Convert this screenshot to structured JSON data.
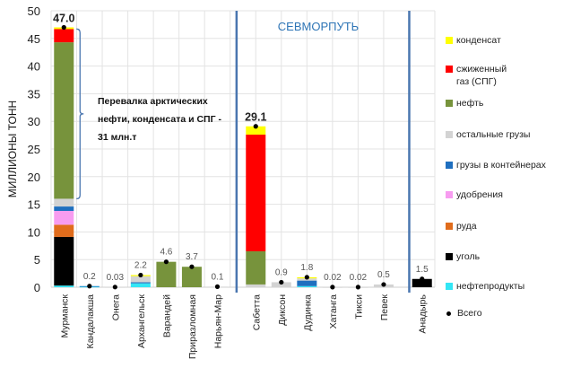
{
  "chart_data": {
    "type": "bar",
    "stacked": true,
    "ylabel": "МИЛЛИОНЫ ТОНН",
    "ylim": [
      0,
      50
    ],
    "yticks": [
      0,
      5,
      10,
      15,
      20,
      25,
      30,
      35,
      40,
      45,
      50
    ],
    "grid": true,
    "legend_position": "right",
    "categories": [
      "Мурманск",
      "Кандалакша",
      "Онега",
      "Архангельск",
      "Варандей",
      "Приразломная",
      "Нарьян-Мар",
      "Сабетта",
      "Диксон",
      "Дудинка",
      "Хатанга",
      "Тикси",
      "Певек",
      "Анадырь"
    ],
    "series": [
      {
        "name": "нефтепродукты",
        "color": "#33e6f5",
        "values": [
          0.3,
          0.1,
          0,
          0.7,
          0,
          0,
          0,
          0,
          0,
          0.2,
          0,
          0,
          0,
          0
        ]
      },
      {
        "name": "уголь",
        "color": "#000000",
        "values": [
          8.8,
          0,
          0,
          0,
          0,
          0,
          0,
          0,
          0,
          0,
          0,
          0,
          0,
          1.5
        ]
      },
      {
        "name": "руда",
        "color": "#e06c1c",
        "values": [
          2.2,
          0,
          0,
          0,
          0,
          0,
          0,
          0,
          0,
          0,
          0,
          0,
          0,
          0
        ]
      },
      {
        "name": "удобрения",
        "color": "#f79cf0",
        "values": [
          2.5,
          0,
          0,
          0,
          0,
          0,
          0,
          0,
          0,
          0,
          0,
          0,
          0,
          0
        ]
      },
      {
        "name": "грузы в контейнерах",
        "color": "#1f6fbf",
        "values": [
          0.8,
          0.1,
          0,
          0.2,
          0,
          0,
          0,
          0,
          0,
          1.0,
          0,
          0,
          0,
          0
        ]
      },
      {
        "name": "остальные грузы",
        "color": "#d3d3d3",
        "values": [
          1.4,
          0,
          0.03,
          1.1,
          0,
          0,
          0.1,
          0.5,
          0.9,
          0.4,
          0.02,
          0.02,
          0.5,
          0
        ]
      },
      {
        "name": "нефть",
        "color": "#77933c",
        "values": [
          28.3,
          0,
          0,
          0,
          4.6,
          3.7,
          0,
          6.0,
          0,
          0,
          0,
          0,
          0,
          0
        ]
      },
      {
        "name": "сжиженный газ (СПГ)",
        "color": "#ff0000",
        "values": [
          2.4,
          0,
          0,
          0,
          0,
          0,
          0,
          21.1,
          0,
          0,
          0,
          0,
          0,
          0
        ]
      },
      {
        "name": "конденсат",
        "color": "#ffff00",
        "values": [
          0.3,
          0,
          0,
          0.2,
          0,
          0,
          0,
          1.5,
          0,
          0.2,
          0,
          0,
          0,
          0
        ]
      }
    ],
    "totals": {
      "name": "Всего",
      "values": [
        47.0,
        0.2,
        0.03,
        2.2,
        4.6,
        3.7,
        0.1,
        29.1,
        0.9,
        1.8,
        0.02,
        0.02,
        0.5,
        1.5
      ],
      "labels": [
        "47.0",
        "0.2",
        "0.03",
        "2.2",
        "4.6",
        "3.7",
        "0.1",
        "29.1",
        "0.9",
        "1.8",
        "0.02",
        "0.02",
        "0.5",
        "1.5"
      ]
    },
    "annotations": {
      "brace_text": [
        "Перевалка арктических",
        "нефти, конденсата и СПГ -",
        "31 млн.т"
      ],
      "region_label": "СЕВМОРПУТЬ"
    }
  }
}
